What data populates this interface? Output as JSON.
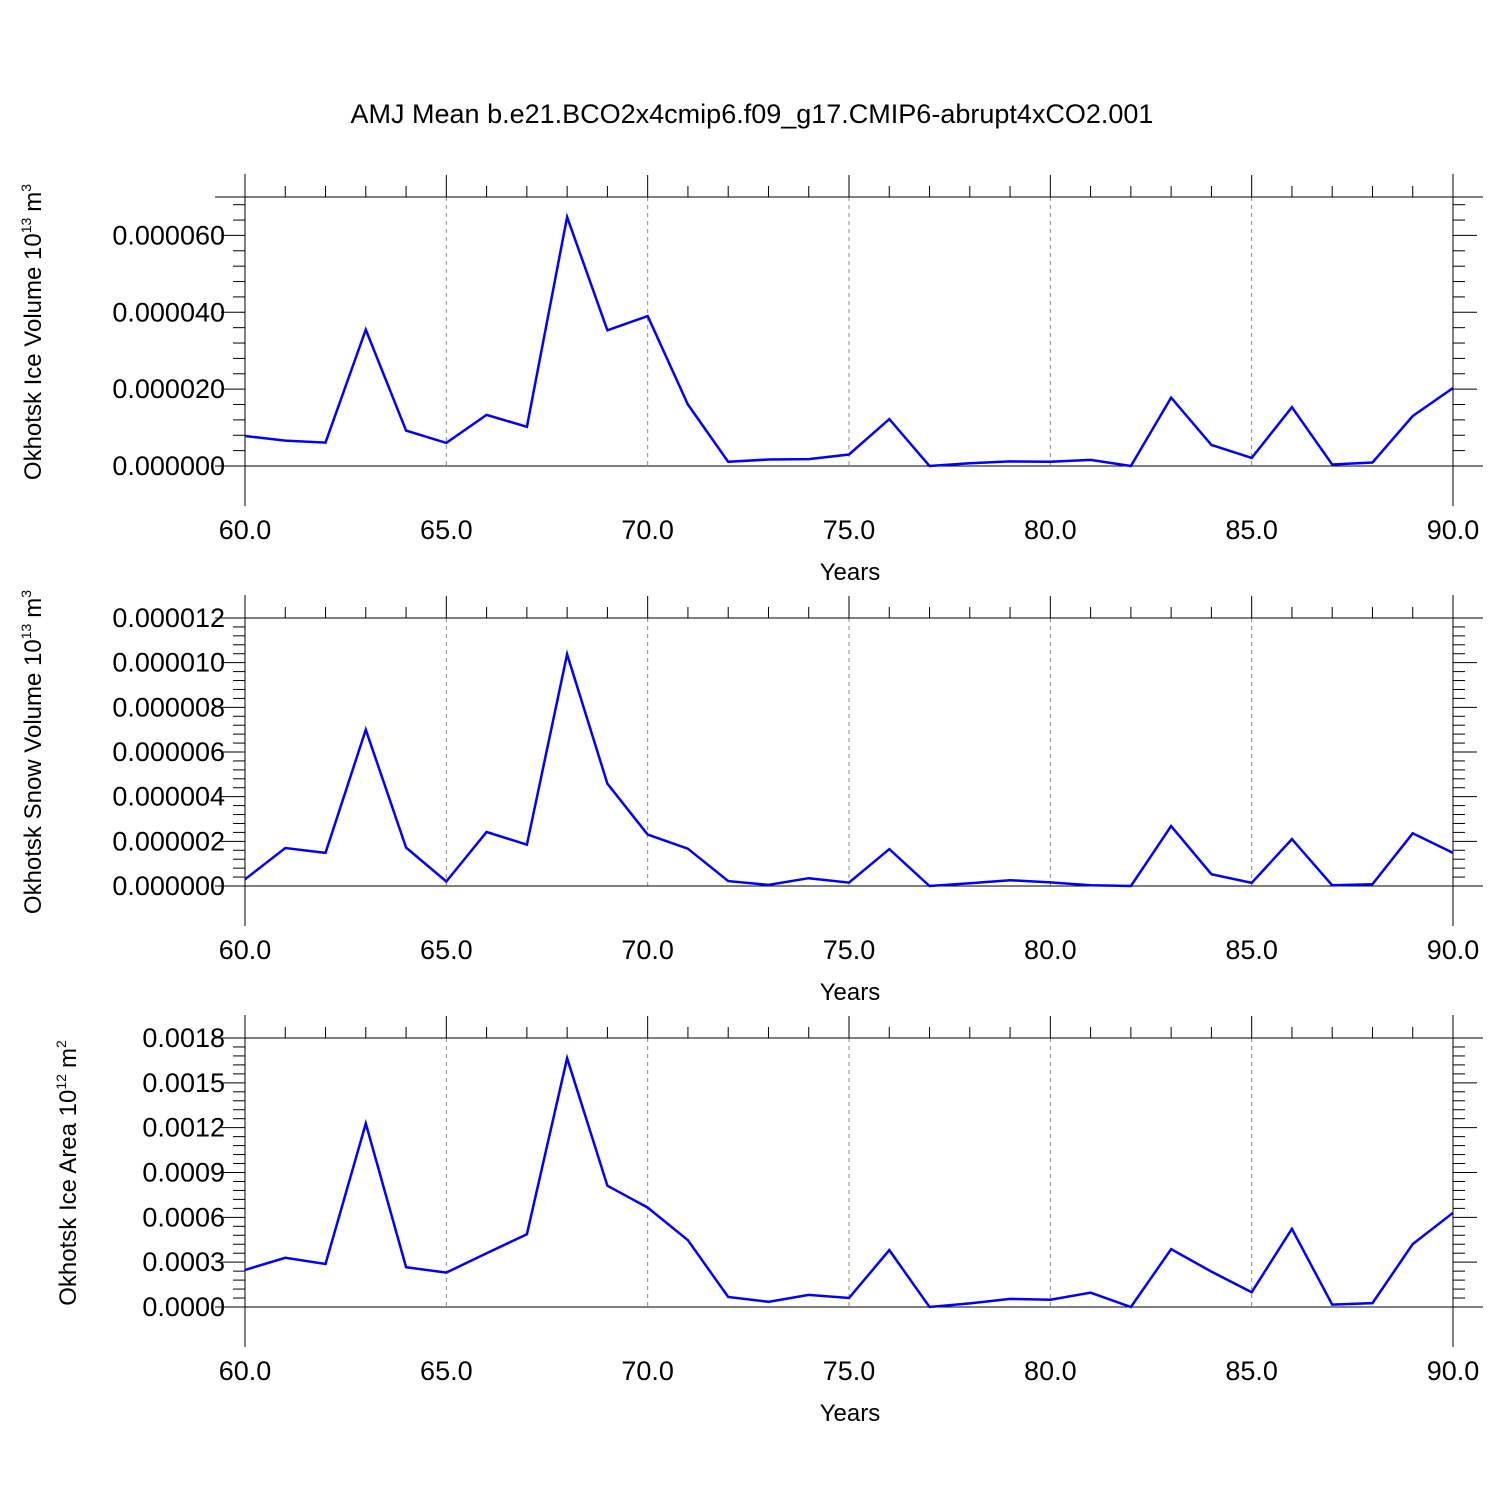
{
  "figure": {
    "title": "AMJ Mean b.e21.BCO2x4cmip6.f09_g17.CMIP6-abrupt4xCO2.001"
  },
  "chart_data": [
    {
      "type": "line",
      "xlabel": "Years",
      "ylabel_text": "Okhotsk Ice Volume 10",
      "ylabel_exp": "13",
      "ylabel_unit": "m",
      "ylabel_unit_exp": "3",
      "xlim": [
        60,
        90
      ],
      "ylim": [
        0,
        7e-05
      ],
      "x_ticks": [
        "60.0",
        "65.0",
        "70.0",
        "75.0",
        "80.0",
        "85.0",
        "90.0"
      ],
      "y_ticks": [
        {
          "value": 0.0,
          "label": "0.000000"
        },
        {
          "value": 2e-05,
          "label": "0.000020"
        },
        {
          "value": 4e-05,
          "label": "0.000040"
        },
        {
          "value": 6e-05,
          "label": "0.000060"
        }
      ],
      "grid": "vertical dashed at major x ticks",
      "line_color": "#0000ff",
      "x": [
        60,
        61,
        62,
        63,
        64,
        65,
        66,
        67,
        68,
        69,
        70,
        71,
        72,
        73,
        74,
        75,
        76,
        77,
        78,
        79,
        80,
        81,
        82,
        83,
        84,
        85,
        86,
        87,
        88,
        89,
        90
      ],
      "values": [
        7.8e-06,
        6.6e-06,
        6.1e-06,
        3.55e-05,
        9.2e-06,
        6e-06,
        1.33e-05,
        1.02e-05,
        6.48e-05,
        3.53e-05,
        3.9e-05,
        1.6e-05,
        1.1e-06,
        1.7e-06,
        1.8e-06,
        3e-06,
        1.22e-05,
        0.0,
        7e-07,
        1.2e-06,
        1.1e-06,
        1.6e-06,
        0.0,
        1.78e-05,
        5.5e-06,
        2.1e-06,
        1.53e-05,
        4e-07,
        9e-07,
        1.3e-05,
        2.03e-05
      ]
    },
    {
      "type": "line",
      "xlabel": "Years",
      "ylabel_text": "Okhotsk Snow Volume 10",
      "ylabel_exp": "13",
      "ylabel_unit": "m",
      "ylabel_unit_exp": "3",
      "xlim": [
        60,
        90
      ],
      "ylim": [
        0,
        1.2e-05
      ],
      "x_ticks": [
        "60.0",
        "65.0",
        "70.0",
        "75.0",
        "80.0",
        "85.0",
        "90.0"
      ],
      "y_ticks": [
        {
          "value": 0.0,
          "label": "0.000000"
        },
        {
          "value": 2e-06,
          "label": "0.000002"
        },
        {
          "value": 4e-06,
          "label": "0.000004"
        },
        {
          "value": 6e-06,
          "label": "0.000006"
        },
        {
          "value": 8e-06,
          "label": "0.000008"
        },
        {
          "value": 1e-05,
          "label": "0.000010"
        },
        {
          "value": 1.2e-05,
          "label": "0.000012"
        }
      ],
      "grid": "vertical dashed at major x ticks",
      "line_color": "#0000ff",
      "x": [
        60,
        61,
        62,
        63,
        64,
        65,
        66,
        67,
        68,
        69,
        70,
        71,
        72,
        73,
        74,
        75,
        76,
        77,
        78,
        79,
        80,
        81,
        82,
        83,
        84,
        85,
        86,
        87,
        88,
        89,
        90
      ],
      "values": [
        3e-07,
        1.7e-06,
        1.48e-06,
        7e-06,
        1.72e-06,
        2e-07,
        2.42e-06,
        1.85e-06,
        1.038e-05,
        4.58e-06,
        2.3e-06,
        1.67e-06,
        2.2e-07,
        5e-08,
        3.5e-07,
        1.5e-07,
        1.65e-06,
        0.0,
        1.2e-07,
        2.6e-07,
        1.6e-07,
        3e-08,
        0.0,
        2.68e-06,
        5.3e-07,
        1.4e-07,
        2.1e-06,
        3e-08,
        8e-08,
        2.36e-06,
        1.48e-06
      ]
    },
    {
      "type": "line",
      "xlabel": "Years",
      "ylabel_text": "Okhotsk Ice Area 10",
      "ylabel_exp": "12",
      "ylabel_unit": "m",
      "ylabel_unit_exp": "2",
      "xlim": [
        60,
        90
      ],
      "ylim": [
        0,
        0.0018
      ],
      "x_ticks": [
        "60.0",
        "65.0",
        "70.0",
        "75.0",
        "80.0",
        "85.0",
        "90.0"
      ],
      "y_ticks": [
        {
          "value": 0.0,
          "label": "0.0000"
        },
        {
          "value": 0.0003,
          "label": "0.0003"
        },
        {
          "value": 0.0006,
          "label": "0.0006"
        },
        {
          "value": 0.0009,
          "label": "0.0009"
        },
        {
          "value": 0.0012,
          "label": "0.0012"
        },
        {
          "value": 0.0015,
          "label": "0.0015"
        },
        {
          "value": 0.0018,
          "label": "0.0018"
        }
      ],
      "grid": "vertical dashed at major x ticks",
      "line_color": "#0000ff",
      "x": [
        60,
        61,
        62,
        63,
        64,
        65,
        66,
        67,
        68,
        69,
        70,
        71,
        72,
        73,
        74,
        75,
        76,
        77,
        78,
        79,
        80,
        81,
        82,
        83,
        84,
        85,
        86,
        87,
        88,
        89,
        90
      ],
      "values": [
        0.000248,
        0.000329,
        0.000288,
        0.001228,
        0.000266,
        0.00023,
        0.000359,
        0.000487,
        0.001665,
        0.000812,
        0.000665,
        0.000447,
        6.7e-05,
        3.5e-05,
        8.1e-05,
        6e-05,
        0.000381,
        0.0,
        2.4e-05,
        5.4e-05,
        4.9e-05,
        9.6e-05,
        0.0,
        0.000387,
        0.000237,
        9.9e-05,
        0.000523,
        1.6e-05,
        2.6e-05,
        0.000421,
        0.00063
      ]
    }
  ]
}
